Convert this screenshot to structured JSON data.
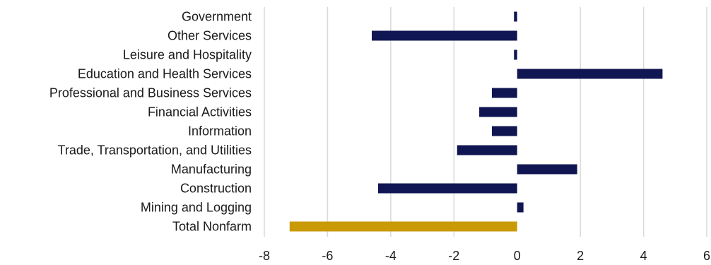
{
  "chart_data": {
    "type": "bar",
    "orientation": "horizontal",
    "title": "",
    "xlabel": "",
    "ylabel": "",
    "categories": [
      "Government",
      "Other Services",
      "Leisure and Hospitality",
      "Education and Health Services",
      "Professional and Business Services",
      "Financial Activities",
      "Information",
      "Trade, Transportation, and Utilities",
      "Manufacturing",
      "Construction",
      "Mining and Logging",
      "Total Nonfarm"
    ],
    "values": [
      -0.1,
      -4.6,
      -0.1,
      4.6,
      -0.8,
      -1.2,
      -0.8,
      -1.9,
      1.9,
      -4.4,
      0.2,
      -7.2
    ],
    "xlim": [
      -8,
      6
    ],
    "xticks": [
      "-8",
      "-6",
      "-4",
      "-2",
      "0",
      "2",
      "4",
      "6"
    ],
    "grid": "vertical",
    "legend": "none",
    "colors": {
      "bar": "#101651",
      "highlight": "#c99a06",
      "grid": "#d9d9d9",
      "text": "#1a1a1a"
    }
  }
}
